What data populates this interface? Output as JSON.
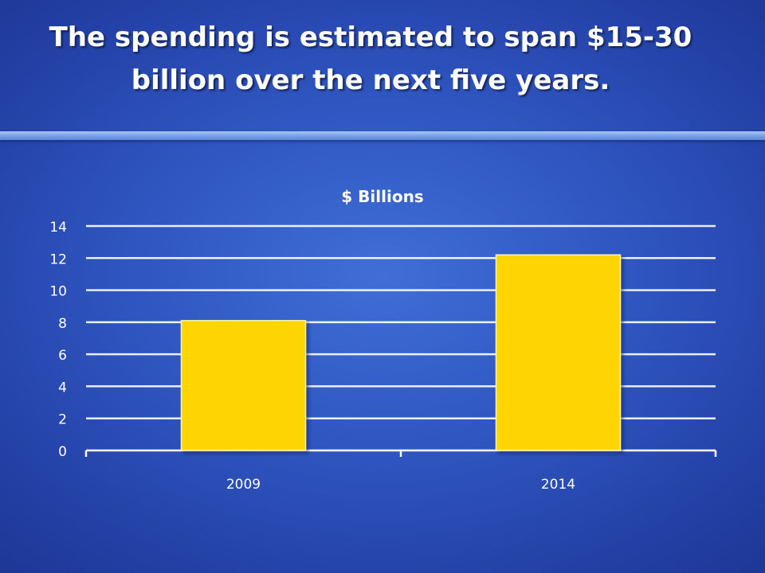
{
  "slide": {
    "title_lines": [
      "The spending is estimated to span $15-30",
      "billion over the next five years."
    ]
  },
  "chart_data": {
    "type": "bar",
    "title": "$ Billions",
    "categories": [
      "2009",
      "2014"
    ],
    "values": [
      8.1,
      12.2
    ],
    "ylim": [
      0,
      14
    ],
    "yticks": [
      0,
      2,
      4,
      6,
      8,
      10,
      12,
      14
    ],
    "grid": true,
    "legend": "none",
    "colors": {
      "bar": "#ffd500",
      "bar_edge": "#fff6b0",
      "gridline": "#ffffff",
      "text": "#ffffff"
    }
  }
}
